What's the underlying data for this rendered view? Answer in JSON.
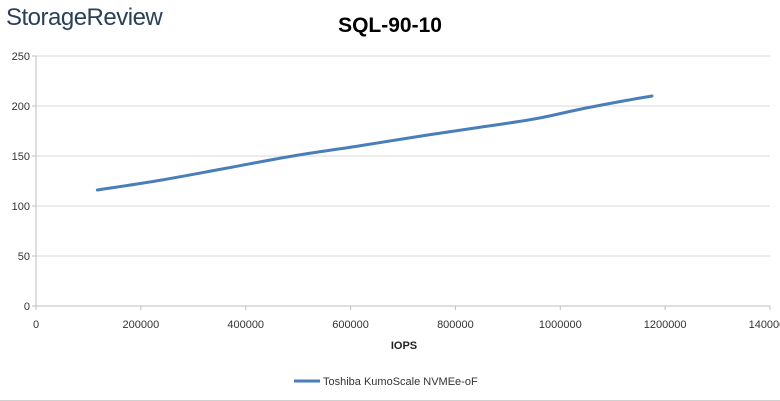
{
  "logo": {
    "text": "StorageReview"
  },
  "chart_data": {
    "type": "line",
    "title": "SQL-90-10",
    "xlabel": "IOPS",
    "ylabel": "",
    "xlim": [
      0,
      1400000
    ],
    "ylim": [
      0,
      250
    ],
    "x_ticks": [
      0,
      200000,
      400000,
      600000,
      800000,
      1000000,
      1200000,
      1400000
    ],
    "y_ticks": [
      0,
      50,
      100,
      150,
      200,
      250
    ],
    "grid": "horizontal",
    "legend_position": "bottom",
    "series": [
      {
        "name": "Toshiba KumoScale NVMEe-oF",
        "color": "#4a7ebb",
        "x": [
          117000,
          240000,
          365000,
          490000,
          615000,
          735000,
          850000,
          950000,
          1040000,
          1120000,
          1175000
        ],
        "y": [
          116,
          126,
          138,
          150,
          160,
          170,
          179,
          187,
          197,
          205,
          210
        ]
      }
    ]
  }
}
